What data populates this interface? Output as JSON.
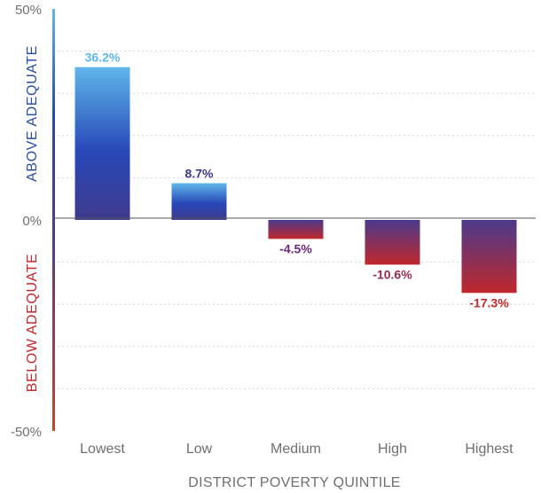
{
  "chart_data": {
    "type": "bar",
    "categories": [
      "Lowest",
      "Low",
      "Medium",
      "High",
      "Highest"
    ],
    "values": [
      36.2,
      8.7,
      -4.5,
      -10.6,
      -17.3
    ],
    "data_labels": [
      "36.2%",
      "8.7%",
      "-4.5%",
      "-10.6%",
      "-17.3%"
    ],
    "xlabel": "DISTRICT POVERTY QUINTILE",
    "ylabel_above": "ABOVE ADEQUATE",
    "ylabel_below": "BELOW ADEQUATE",
    "ylim": [
      -50,
      50
    ],
    "yticks": [
      {
        "value": 50,
        "label": "50%"
      },
      {
        "value": 0,
        "label": "0%"
      },
      {
        "value": -50,
        "label": "-50%"
      }
    ],
    "gridlines": [
      40,
      30,
      20,
      10,
      -10,
      -20,
      -30,
      -40
    ],
    "grid": true,
    "colors": {
      "positive_top": "#5fb6ea",
      "positive_mid": "#2848b8",
      "zero": "#4a3a8c",
      "negative_bottom": "#c0282c",
      "above_text": "#2a4fa0",
      "below_text": "#c0282c"
    }
  }
}
